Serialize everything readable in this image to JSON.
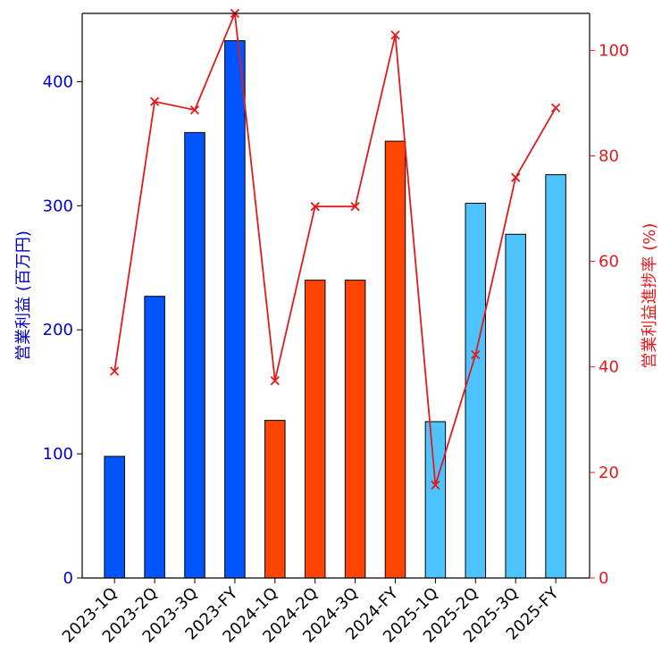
{
  "chart_data": {
    "type": "bar",
    "categories": [
      "2023-1Q",
      "2023-2Q",
      "2023-3Q",
      "2023-FY",
      "2024-1Q",
      "2024-2Q",
      "2024-3Q",
      "2024-FY",
      "2025-1Q",
      "2025-2Q",
      "2025-3Q",
      "2025-FY"
    ],
    "series": [
      {
        "name": "営業利益 (百万円)",
        "type": "bar",
        "axis": "left",
        "values": [
          98,
          227,
          359,
          433,
          127,
          240,
          240,
          352,
          126,
          302,
          277,
          325
        ],
        "colors": [
          "#0055ff",
          "#0055ff",
          "#0055ff",
          "#0055ff",
          "#ff4500",
          "#ff4500",
          "#ff4500",
          "#ff4500",
          "#4dc3ff",
          "#4dc3ff",
          "#4dc3ff",
          "#4dc3ff"
        ]
      },
      {
        "name": "営業利益進捗率 (%)",
        "type": "line",
        "axis": "right",
        "marker": "x",
        "color": "#e31a1c",
        "values": [
          39.2,
          90.3,
          88.7,
          107.0,
          37.4,
          70.4,
          70.4,
          102.9,
          17.6,
          42.3,
          75.9,
          89.1
        ]
      }
    ],
    "ylabel": "営業利益 (百万円)",
    "y2label": "営業利益進捗率 (%)",
    "ylim": [
      0,
      455
    ],
    "y2lim": [
      0,
      107
    ],
    "yticks": [
      0,
      100,
      200,
      300,
      400
    ],
    "y2ticks": [
      0,
      20,
      40,
      60,
      80,
      100
    ],
    "ylabel_color": "#0000cc",
    "y2label_color": "#e31a1c",
    "grid": false,
    "legend": "none"
  }
}
